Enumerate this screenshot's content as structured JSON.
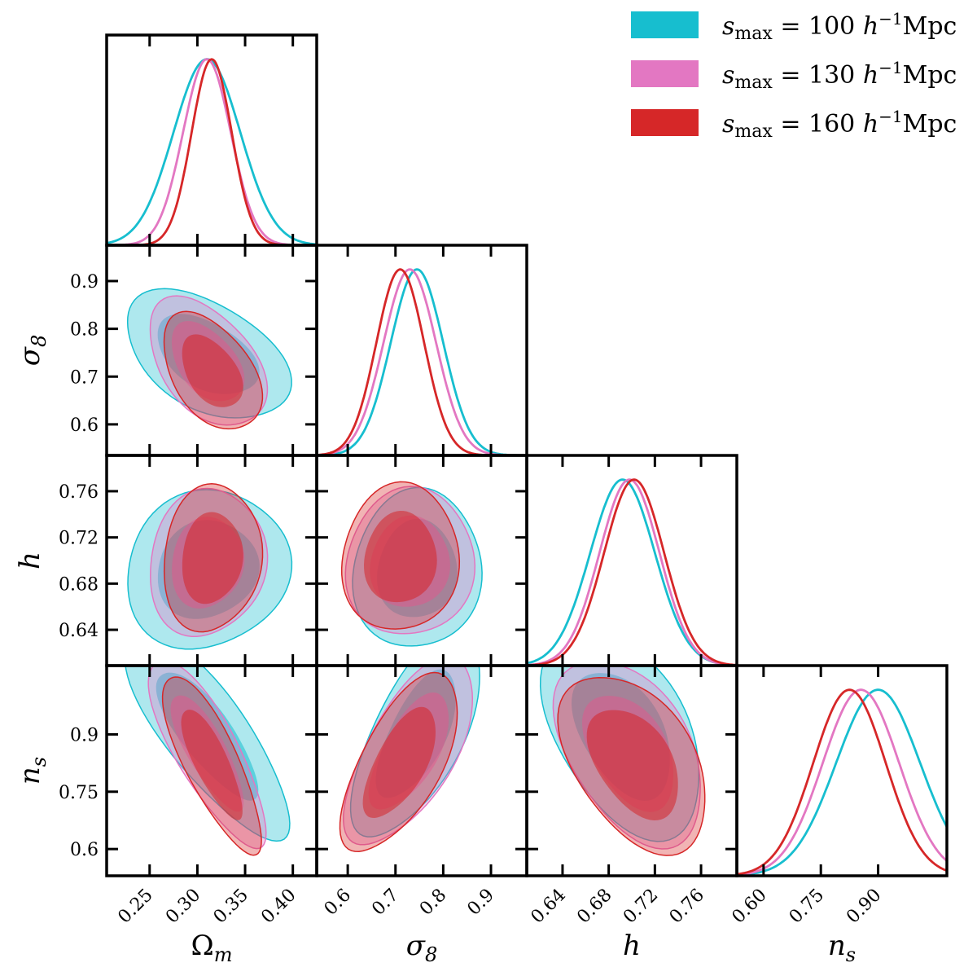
{
  "chart_data": {
    "type": "corner",
    "params": [
      {
        "key": "Om",
        "label": "Ω",
        "sub": "m",
        "range": [
          0.205,
          0.425
        ],
        "ticks": [
          0.25,
          0.3,
          0.35,
          0.4
        ],
        "tick_labels": [
          "0.25",
          "0.30",
          "0.35",
          "0.40"
        ],
        "mean": {
          "s100": 0.31,
          "s130": 0.31,
          "s160": 0.315
        },
        "sigma": {
          "s100": 0.035,
          "s130": 0.025,
          "s160": 0.021
        }
      },
      {
        "key": "s8",
        "label": "σ",
        "sub": "8",
        "range": [
          0.535,
          0.975
        ],
        "ticks": [
          0.6,
          0.7,
          0.8,
          0.9
        ],
        "tick_labels": [
          "0.6",
          "0.7",
          "0.8",
          "0.9"
        ],
        "mean": {
          "s100": 0.745,
          "s130": 0.73,
          "s160": 0.71
        },
        "sigma": {
          "s100": 0.055,
          "s130": 0.055,
          "s160": 0.05
        }
      },
      {
        "key": "h",
        "label": "h",
        "sub": "",
        "range": [
          0.609,
          0.791
        ],
        "ticks": [
          0.64,
          0.68,
          0.72,
          0.76
        ],
        "tick_labels": [
          "0.64",
          "0.68",
          "0.72",
          "0.76"
        ],
        "mean": {
          "s100": 0.692,
          "s130": 0.698,
          "s160": 0.702
        },
        "sigma": {
          "s100": 0.028,
          "s130": 0.026,
          "s160": 0.026
        }
      },
      {
        "key": "ns",
        "label": "n",
        "sub": "s",
        "range": [
          0.53,
          1.08
        ],
        "ticks": [
          0.6,
          0.75,
          0.9
        ],
        "tick_labels": [
          "0.60",
          "0.75",
          "0.90"
        ],
        "tick_labels_y": [
          "0.6",
          "0.75",
          "0.9"
        ],
        "mean": {
          "s100": 0.9,
          "s130": 0.855,
          "s160": 0.825
        },
        "sigma": {
          "s100": 0.11,
          "s130": 0.1,
          "s160": 0.095
        }
      }
    ],
    "series": [
      {
        "key": "s100",
        "name": "s_max = 100 h^-1 Mpc",
        "legend_value": "= 100",
        "color": "#17becf"
      },
      {
        "key": "s130",
        "name": "s_max = 130 h^-1 Mpc",
        "legend_value": "= 130",
        "color": "#e377c2"
      },
      {
        "key": "s160",
        "name": "s_max = 160 h^-1 Mpc",
        "legend_value": "= 160",
        "color": "#d62728"
      }
    ],
    "correlations": {
      "Om-s8": -0.45,
      "Om-h": 0.1,
      "s8-h": 0.05,
      "Om-ns": -0.8,
      "s8-ns": 0.65,
      "h-ns": -0.45
    },
    "legend": {
      "position": "top-right",
      "symbol": "s",
      "symbol_sub": "max",
      "unit_base": "h",
      "unit_exp": "−1",
      "unit": "Mpc"
    }
  }
}
